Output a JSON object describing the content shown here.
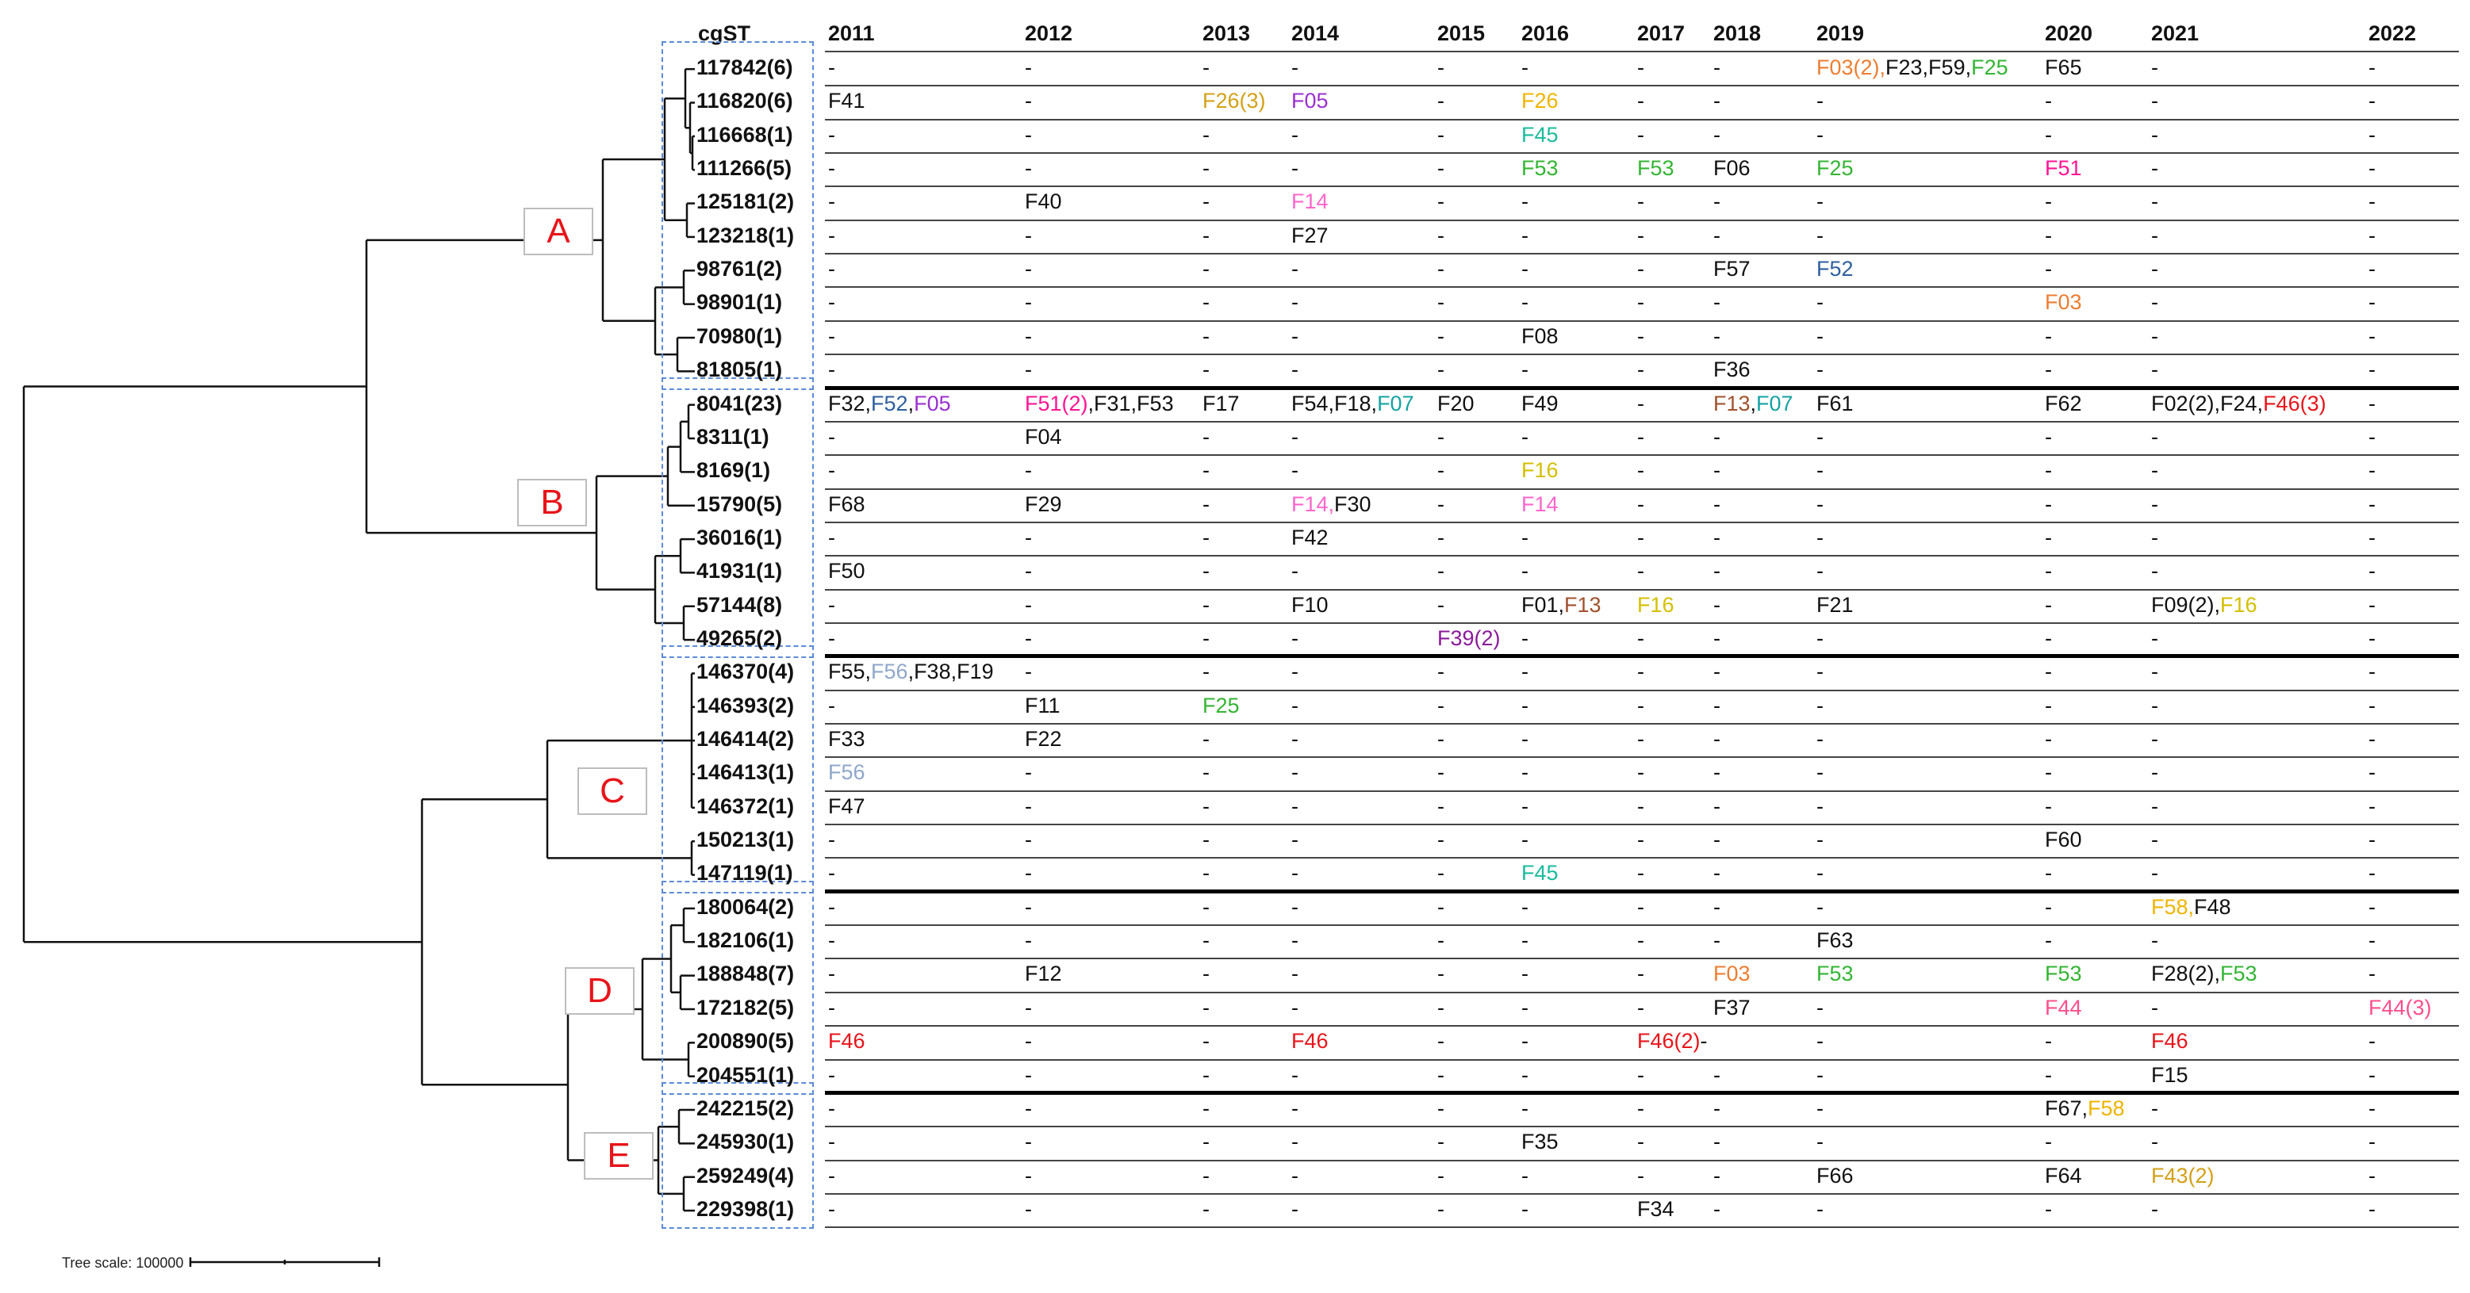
{
  "header": {
    "cgst_label": "cgST",
    "years": [
      "2011",
      "2012",
      "2013",
      "2014",
      "2015",
      "2016",
      "2017",
      "2018",
      "2019",
      "2020",
      "2021",
      "2022"
    ]
  },
  "clades": [
    "A",
    "B",
    "C",
    "D",
    "E"
  ],
  "scale": {
    "label": "Tree scale: 100000"
  },
  "colors": {
    "k": "#111111",
    "orange": "#ed7d31",
    "purple": "#9b30d0",
    "green": "#33b533",
    "teal": "#1abc9c",
    "pink": "#ff1493",
    "lightpink": "#ff66cc",
    "blue": "#2e5f9e",
    "brown": "#a0522d",
    "cyan": "#15a3a3",
    "red": "#e8141a",
    "yellow": "#d4bf00",
    "violet": "#8b1a9b",
    "grayblue": "#8fa7c9",
    "gold": "#f0b400",
    "rose": "#ff4f8b",
    "mustard": "#d4a017"
  },
  "rows": [
    {
      "id": "117842(6)",
      "cells": [
        "-",
        "-",
        "-",
        "-",
        "-",
        "-",
        "-",
        "-",
        [
          [
            "F03(2),",
            "orange"
          ],
          [
            "F23,F59,",
            "k"
          ],
          [
            "F25",
            "green"
          ]
        ],
        "F65",
        "-",
        "-"
      ]
    },
    {
      "id": "116820(6)",
      "cells": [
        "F41",
        "-",
        [
          [
            "F26(3)",
            "mustard"
          ]
        ],
        [
          [
            "F05",
            "purple"
          ]
        ],
        "-",
        [
          [
            "F26",
            "gold"
          ]
        ],
        "-",
        "-",
        "-",
        "-",
        "-",
        "-"
      ]
    },
    {
      "id": "116668(1)",
      "cells": [
        "-",
        "-",
        "-",
        "-",
        "-",
        [
          [
            "F45",
            "teal"
          ]
        ],
        "-",
        "-",
        "-",
        "-",
        "-",
        "-"
      ]
    },
    {
      "id": "111266(5)",
      "cells": [
        "-",
        "-",
        "-",
        "-",
        "-",
        [
          [
            "F53",
            "green"
          ]
        ],
        [
          [
            "F53",
            "green"
          ]
        ],
        "F06",
        [
          [
            "F25",
            "green"
          ]
        ],
        [
          [
            "F51",
            "pink"
          ]
        ],
        "-",
        "-"
      ]
    },
    {
      "id": "125181(2)",
      "cells": [
        "-",
        "F40",
        "-",
        [
          [
            "F14",
            "lightpink"
          ]
        ],
        "-",
        "-",
        "-",
        "-",
        "-",
        "-",
        "-",
        "-"
      ]
    },
    {
      "id": "123218(1)",
      "cells": [
        "-",
        "-",
        "-",
        "F27",
        "-",
        "-",
        "-",
        "-",
        "-",
        "-",
        "-",
        "-"
      ]
    },
    {
      "id": "98761(2)",
      "cells": [
        "-",
        "-",
        "-",
        "-",
        "-",
        "-",
        "-",
        "F57",
        [
          [
            "F52",
            "blue"
          ]
        ],
        "-",
        "-",
        "-"
      ]
    },
    {
      "id": "98901(1)",
      "cells": [
        "-",
        "-",
        "-",
        "-",
        "-",
        "-",
        "-",
        "-",
        "-",
        [
          [
            "F03",
            "orange"
          ]
        ],
        "-",
        "-"
      ]
    },
    {
      "id": "70980(1)",
      "cells": [
        "-",
        "-",
        "-",
        "-",
        "-",
        "F08",
        "-",
        "-",
        "-",
        "-",
        "-",
        "-"
      ]
    },
    {
      "id": "81805(1)",
      "cells": [
        "-",
        "-",
        "-",
        "-",
        "-",
        "-",
        "-",
        "F36",
        "-",
        "-",
        "-",
        "-"
      ]
    },
    {
      "id": "8041(23)",
      "cells": [
        [
          [
            "F32,",
            "k"
          ],
          [
            "F52",
            "blue"
          ],
          [
            ",",
            "k"
          ],
          [
            "F05",
            "purple"
          ]
        ],
        [
          [
            "F51(2)",
            "pink"
          ],
          [
            ",F31,F53",
            "k"
          ]
        ],
        "F17",
        [
          [
            "F54,F18,",
            "k"
          ],
          [
            "F07",
            "cyan"
          ]
        ],
        "F20",
        "F49",
        "-",
        [
          [
            "F13",
            "brown"
          ],
          [
            ",",
            "k"
          ],
          [
            "F07",
            "cyan"
          ]
        ],
        "F61",
        "F62",
        [
          [
            "F02(2),F24,",
            "k"
          ],
          [
            "F46(3)",
            "red"
          ]
        ],
        "-"
      ]
    },
    {
      "id": "8311(1)",
      "cells": [
        "-",
        "F04",
        "-",
        "-",
        "-",
        "-",
        "-",
        "-",
        "-",
        "-",
        "-",
        "-"
      ]
    },
    {
      "id": "8169(1)",
      "cells": [
        "-",
        "-",
        "-",
        "-",
        "-",
        [
          [
            "F16",
            "yellow"
          ]
        ],
        "-",
        "-",
        "-",
        "-",
        "-",
        "-"
      ]
    },
    {
      "id": "15790(5)",
      "cells": [
        "F68",
        "F29",
        "-",
        [
          [
            "F14,",
            "lightpink"
          ],
          [
            "F30",
            "k"
          ]
        ],
        "-",
        [
          [
            "F14",
            "lightpink"
          ]
        ],
        "-",
        "-",
        "-",
        "-",
        "-",
        "-"
      ]
    },
    {
      "id": "36016(1)",
      "cells": [
        "-",
        "-",
        "-",
        "F42",
        "-",
        "-",
        "-",
        "-",
        "-",
        "-",
        "-",
        "-"
      ]
    },
    {
      "id": "41931(1)",
      "cells": [
        "F50",
        "-",
        "-",
        "-",
        "-",
        "-",
        "-",
        "-",
        "-",
        "-",
        "-",
        "-"
      ]
    },
    {
      "id": "57144(8)",
      "cells": [
        "-",
        "-",
        "-",
        "F10",
        "-",
        [
          [
            "F01,",
            "k"
          ],
          [
            "F13",
            "brown"
          ]
        ],
        [
          [
            "F16",
            "yellow"
          ]
        ],
        "-",
        "F21",
        "-",
        [
          [
            "F09(2),",
            "k"
          ],
          [
            "F16",
            "yellow"
          ]
        ],
        "-"
      ]
    },
    {
      "id": "49265(2)",
      "cells": [
        "-",
        "-",
        "-",
        "-",
        [
          [
            "F39(2)",
            "violet"
          ]
        ],
        "-",
        "-",
        "-",
        "-",
        "-",
        "-",
        "-"
      ]
    },
    {
      "id": "146370(4)",
      "cells": [
        [
          [
            "F55,",
            "k"
          ],
          [
            "F56",
            "grayblue"
          ],
          [
            ",F38,F19",
            "k"
          ]
        ],
        "-",
        "-",
        "-",
        "-",
        "-",
        "-",
        "-",
        "-",
        "-",
        "-",
        "-"
      ]
    },
    {
      "id": "146393(2)",
      "cells": [
        "-",
        "F11",
        [
          [
            "F25",
            "green"
          ]
        ],
        "-",
        "-",
        "-",
        "-",
        "-",
        "-",
        "-",
        "-",
        "-"
      ]
    },
    {
      "id": "146414(2)",
      "cells": [
        "F33",
        "F22",
        "-",
        "-",
        "-",
        "-",
        "-",
        "-",
        "-",
        "-",
        "-",
        "-"
      ]
    },
    {
      "id": "146413(1)",
      "cells": [
        [
          [
            "F56",
            "grayblue"
          ]
        ],
        "-",
        "-",
        "-",
        "-",
        "-",
        "-",
        "-",
        "-",
        "-",
        "-",
        "-"
      ]
    },
    {
      "id": "146372(1)",
      "cells": [
        "F47",
        "-",
        "-",
        "-",
        "-",
        "-",
        "-",
        "-",
        "-",
        "-",
        "-",
        "-"
      ]
    },
    {
      "id": "150213(1)",
      "cells": [
        "-",
        "-",
        "-",
        "-",
        "-",
        "-",
        "-",
        "-",
        "-",
        "F60",
        "-",
        "-"
      ]
    },
    {
      "id": "147119(1)",
      "cells": [
        "-",
        "-",
        "-",
        "-",
        "-",
        [
          [
            "F45",
            "teal"
          ]
        ],
        "-",
        "-",
        "-",
        "-",
        "-",
        "-"
      ]
    },
    {
      "id": "180064(2)",
      "cells": [
        "-",
        "-",
        "-",
        "-",
        "-",
        "-",
        "-",
        "-",
        "-",
        "-",
        [
          [
            "F58,",
            "gold"
          ],
          [
            "F48",
            "k"
          ]
        ],
        "-"
      ]
    },
    {
      "id": "182106(1)",
      "cells": [
        "-",
        "-",
        "-",
        "-",
        "-",
        "-",
        "-",
        "-",
        "F63",
        "-",
        "-",
        "-"
      ]
    },
    {
      "id": "188848(7)",
      "cells": [
        "-",
        "F12",
        "-",
        "-",
        "-",
        "-",
        "-",
        [
          [
            "F03",
            "orange"
          ]
        ],
        [
          [
            "F53",
            "green"
          ]
        ],
        [
          [
            "F53",
            "green"
          ]
        ],
        [
          [
            "F28(2),",
            "k"
          ],
          [
            "F53",
            "green"
          ]
        ],
        "-"
      ]
    },
    {
      "id": "172182(5)",
      "cells": [
        "-",
        "-",
        "-",
        "-",
        "-",
        "-",
        "-",
        "F37",
        "-",
        [
          [
            "F44",
            "rose"
          ]
        ],
        "-",
        [
          [
            "F44(3)",
            "rose"
          ]
        ]
      ]
    },
    {
      "id": "200890(5)",
      "cells": [
        [
          [
            "F46",
            "red"
          ]
        ],
        "-",
        "-",
        [
          [
            "F46",
            "red"
          ]
        ],
        "-",
        "-",
        [
          [
            "F46(2)",
            "red"
          ],
          [
            "-",
            "k"
          ]
        ],
        "",
        "-",
        "-",
        [
          [
            "F46",
            "red"
          ]
        ],
        "-"
      ]
    },
    {
      "id": "204551(1)",
      "cells": [
        "-",
        "-",
        "-",
        "-",
        "-",
        "-",
        "-",
        "-",
        "-",
        "-",
        "F15",
        "-"
      ]
    },
    {
      "id": "242215(2)",
      "cells": [
        "-",
        "-",
        "-",
        "-",
        "-",
        "-",
        "-",
        "-",
        "-",
        [
          [
            "F67,",
            "k"
          ],
          [
            "F58",
            "gold"
          ]
        ],
        "-",
        "-"
      ]
    },
    {
      "id": "245930(1)",
      "cells": [
        "-",
        "-",
        "-",
        "-",
        "-",
        "F35",
        "-",
        "-",
        "-",
        "-",
        "-",
        "-"
      ]
    },
    {
      "id": "259249(4)",
      "cells": [
        "-",
        "-",
        "-",
        "-",
        "-",
        "-",
        "-",
        "-",
        "F66",
        "F64",
        [
          [
            "F43(2)",
            "mustard"
          ]
        ],
        "-"
      ]
    },
    {
      "id": "229398(1)",
      "cells": [
        "-",
        "-",
        "-",
        "-",
        "-",
        "-",
        "F34",
        "-",
        "-",
        "-",
        "-",
        "-"
      ]
    }
  ]
}
